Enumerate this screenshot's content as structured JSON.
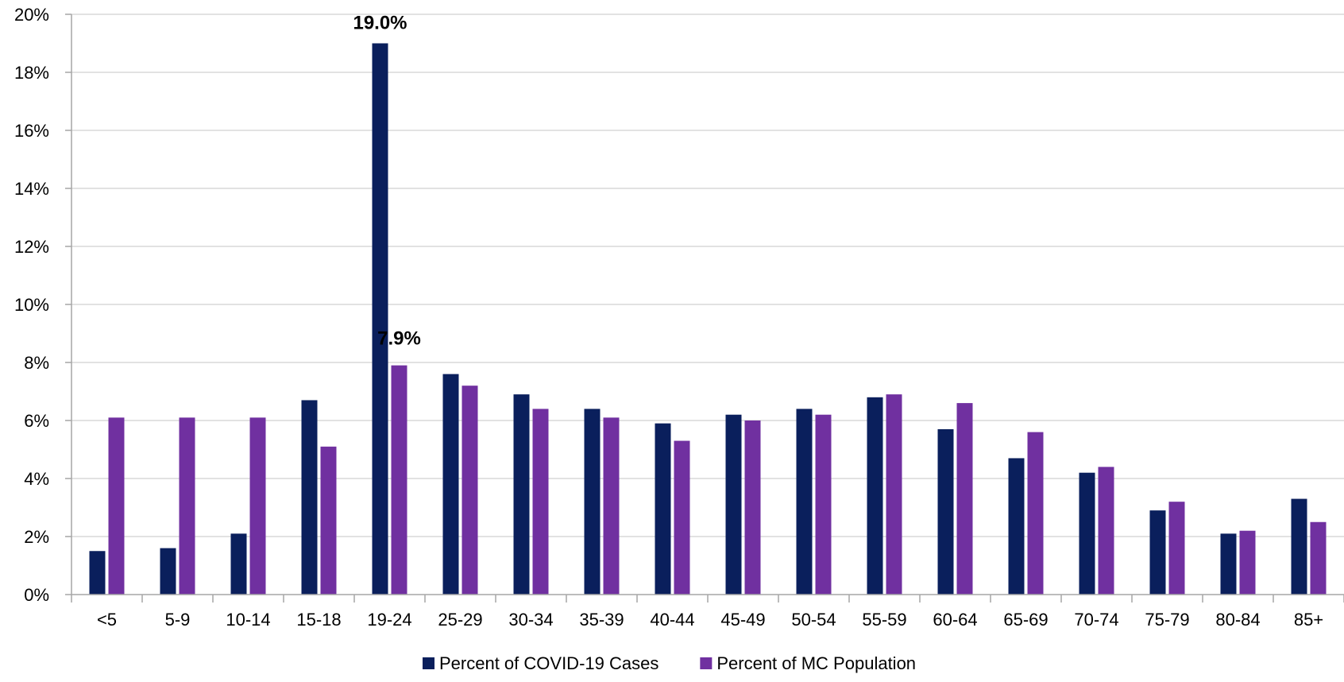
{
  "chart_data": {
    "type": "bar",
    "title": "",
    "xlabel": "",
    "ylabel": "",
    "ylim": [
      0,
      20
    ],
    "yticks": [
      0,
      2,
      4,
      6,
      8,
      10,
      12,
      14,
      16,
      18,
      20
    ],
    "ytick_labels": [
      "0%",
      "2%",
      "4%",
      "6%",
      "8%",
      "10%",
      "12%",
      "14%",
      "16%",
      "18%",
      "20%"
    ],
    "grid": true,
    "legend_position": "bottom",
    "categories": [
      "<5",
      "5-9",
      "10-14",
      "15-18",
      "19-24",
      "25-29",
      "30-34",
      "35-39",
      "40-44",
      "45-49",
      "50-54",
      "55-59",
      "60-64",
      "65-69",
      "70-74",
      "75-79",
      "80-84",
      "85+"
    ],
    "series": [
      {
        "name": "Percent of COVID-19 Cases",
        "color": "#0a1f5c",
        "values": [
          1.5,
          1.6,
          2.1,
          6.7,
          19.0,
          7.6,
          6.9,
          6.4,
          5.9,
          6.2,
          6.4,
          6.8,
          5.7,
          4.7,
          4.2,
          2.9,
          2.1,
          3.3
        ]
      },
      {
        "name": "Percent of MC Population",
        "color": "#7030a0",
        "values": [
          6.1,
          6.1,
          6.1,
          5.1,
          7.9,
          7.2,
          6.4,
          6.1,
          5.3,
          6.0,
          6.2,
          6.9,
          6.6,
          5.6,
          4.4,
          3.2,
          2.2,
          2.5
        ]
      }
    ],
    "annotations": [
      {
        "series": 0,
        "category": "19-24",
        "text": "19.0%"
      },
      {
        "series": 1,
        "category": "19-24",
        "text": "7.9%"
      }
    ]
  }
}
